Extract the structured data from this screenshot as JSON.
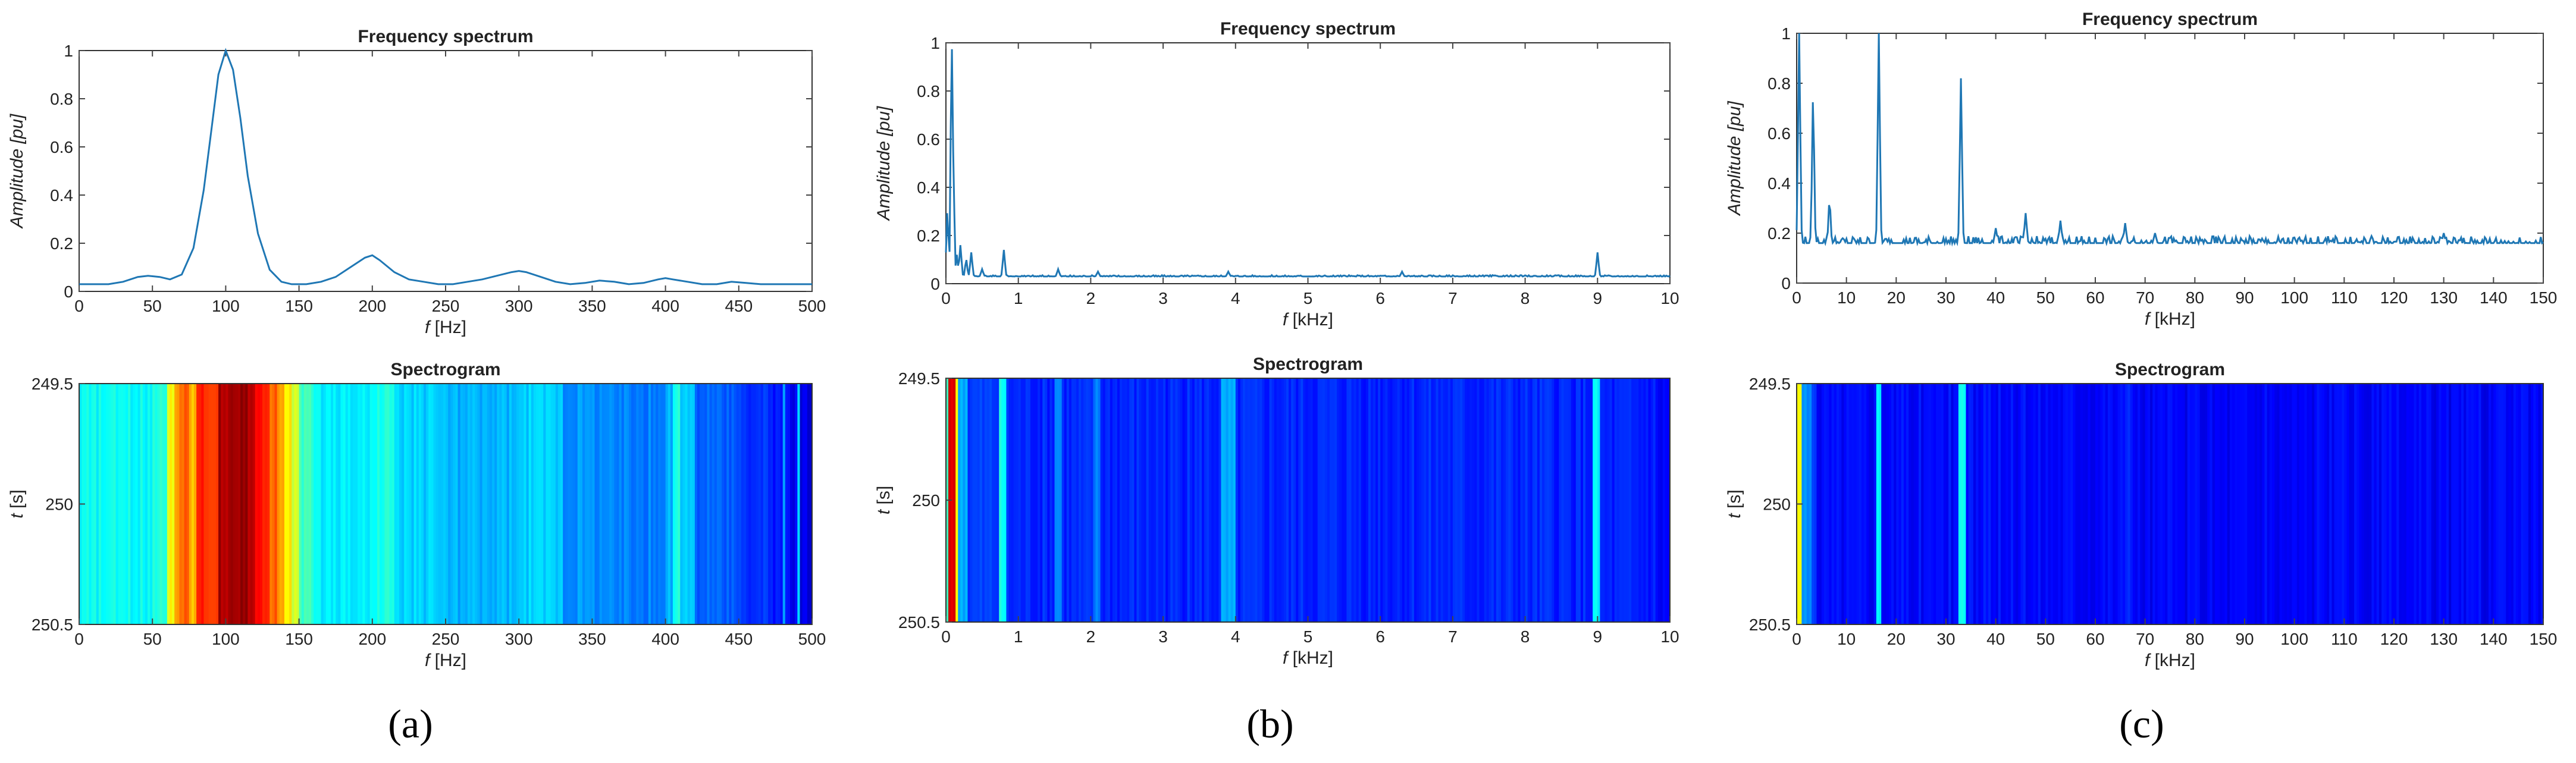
{
  "figure_labels": [
    "(a)",
    "(b)",
    "(c)"
  ],
  "chart_data": [
    {
      "type": "line",
      "title": "Frequency spectrum",
      "xlabel_var": "f",
      "xlabel_unit": "[Hz]",
      "ylabel_var": "Amplitude",
      "ylabel_unit": "[pu]",
      "xlim": [
        0,
        500
      ],
      "ylim": [
        0,
        1
      ],
      "xticks": [
        0,
        50,
        100,
        150,
        200,
        250,
        300,
        350,
        400,
        450,
        500
      ],
      "yticks": [
        0,
        0.2,
        0.4,
        0.6,
        0.8,
        1
      ],
      "ytick_labels": [
        "0",
        "0.2",
        "0.4",
        "0.6",
        "0.8",
        "1"
      ],
      "color": "#1f77b4",
      "series": [
        {
          "name": "spectrum",
          "x": [
            0,
            10,
            20,
            30,
            40,
            47,
            55,
            62,
            70,
            78,
            85,
            90,
            95,
            100,
            105,
            110,
            115,
            122,
            130,
            138,
            145,
            155,
            165,
            175,
            185,
            195,
            200,
            205,
            215,
            225,
            235,
            245,
            255,
            265,
            275,
            285,
            295,
            300,
            305,
            315,
            325,
            335,
            345,
            355,
            365,
            375,
            385,
            395,
            400,
            405,
            415,
            425,
            435,
            445,
            455,
            465,
            475,
            485,
            495,
            500
          ],
          "y": [
            0.03,
            0.03,
            0.03,
            0.04,
            0.06,
            0.065,
            0.06,
            0.05,
            0.07,
            0.18,
            0.42,
            0.66,
            0.9,
            1.0,
            0.92,
            0.72,
            0.48,
            0.24,
            0.09,
            0.04,
            0.03,
            0.03,
            0.04,
            0.06,
            0.1,
            0.14,
            0.15,
            0.13,
            0.08,
            0.05,
            0.04,
            0.03,
            0.03,
            0.04,
            0.05,
            0.065,
            0.08,
            0.085,
            0.08,
            0.06,
            0.04,
            0.03,
            0.035,
            0.045,
            0.04,
            0.03,
            0.035,
            0.05,
            0.055,
            0.05,
            0.04,
            0.03,
            0.03,
            0.04,
            0.035,
            0.03,
            0.03,
            0.03,
            0.03,
            0.03
          ]
        }
      ]
    },
    {
      "type": "line",
      "title": "Frequency spectrum",
      "xlabel_var": "f",
      "xlabel_unit": "[kHz]",
      "ylabel_var": "Amplitude",
      "ylabel_unit": "[pu]",
      "xlim": [
        0,
        10
      ],
      "ylim": [
        0,
        1
      ],
      "xticks": [
        0,
        1,
        2,
        3,
        4,
        5,
        6,
        7,
        8,
        9,
        10
      ],
      "yticks": [
        0,
        0.2,
        0.4,
        0.6,
        0.8,
        1
      ],
      "ytick_labels": [
        "0",
        "0.2",
        "0.4",
        "0.6",
        "0.8",
        "1"
      ],
      "color": "#1f77b4",
      "baseline": 0.03,
      "peaks": [
        [
          0.02,
          0.3
        ],
        [
          0.08,
          1.0
        ],
        [
          0.1,
          0.55
        ],
        [
          0.15,
          0.12
        ],
        [
          0.2,
          0.16
        ],
        [
          0.28,
          0.1
        ],
        [
          0.35,
          0.13
        ],
        [
          0.5,
          0.06
        ],
        [
          0.8,
          0.14
        ],
        [
          1.55,
          0.06
        ],
        [
          2.1,
          0.05
        ],
        [
          3.9,
          0.05
        ],
        [
          6.3,
          0.05
        ],
        [
          9.0,
          0.13
        ]
      ]
    },
    {
      "type": "line",
      "title": "Frequency spectrum",
      "xlabel_var": "f",
      "xlabel_unit": "[kHz]",
      "ylabel_var": "Amplitude",
      "ylabel_unit": "[pu]",
      "xlim": [
        0,
        150
      ],
      "ylim": [
        0,
        1
      ],
      "xticks": [
        0,
        10,
        20,
        30,
        40,
        50,
        60,
        70,
        80,
        90,
        100,
        110,
        120,
        130,
        140,
        150
      ],
      "yticks": [
        0,
        0.2,
        0.4,
        0.6,
        0.8,
        1
      ],
      "ytick_labels": [
        "0",
        "0.2",
        "0.4",
        "0.6",
        "0.8",
        "1"
      ],
      "color": "#1f77b4",
      "baseline": 0.16,
      "peaks": [
        [
          0.5,
          1.0
        ],
        [
          3.3,
          0.74
        ],
        [
          6.6,
          0.33
        ],
        [
          16.5,
          1.0
        ],
        [
          33,
          0.82
        ],
        [
          40,
          0.22
        ],
        [
          46,
          0.28
        ],
        [
          53,
          0.25
        ],
        [
          66,
          0.24
        ],
        [
          72,
          0.2
        ],
        [
          130,
          0.2
        ]
      ]
    },
    {
      "type": "heatmap",
      "title": "Spectrogram",
      "xlabel_var": "f",
      "xlabel_unit": "[Hz]",
      "ylabel_var": "t",
      "ylabel_unit": "[s]",
      "xlim": [
        0,
        500
      ],
      "xticks": [
        0,
        50,
        100,
        150,
        200,
        250,
        300,
        350,
        400,
        450,
        500
      ],
      "ytick_labels": [
        "249.5",
        "250",
        "250.5"
      ],
      "colormap": "jet",
      "bands": [
        [
          0,
          0.38
        ],
        [
          50,
          0.42
        ],
        [
          60,
          0.62
        ],
        [
          65,
          0.74
        ],
        [
          70,
          0.78
        ],
        [
          75,
          0.7
        ],
        [
          80,
          0.86
        ],
        [
          85,
          0.8
        ],
        [
          90,
          0.82
        ],
        [
          95,
          0.96
        ],
        [
          105,
          0.98
        ],
        [
          115,
          0.96
        ],
        [
          120,
          0.86
        ],
        [
          125,
          0.82
        ],
        [
          130,
          0.78
        ],
        [
          135,
          0.72
        ],
        [
          140,
          0.64
        ],
        [
          145,
          0.58
        ],
        [
          150,
          0.44
        ],
        [
          160,
          0.36
        ],
        [
          200,
          0.4
        ],
        [
          215,
          0.33
        ],
        [
          250,
          0.3
        ],
        [
          300,
          0.33
        ],
        [
          330,
          0.27
        ],
        [
          360,
          0.25
        ],
        [
          400,
          0.3
        ],
        [
          405,
          0.4
        ],
        [
          410,
          0.32
        ],
        [
          420,
          0.22
        ],
        [
          450,
          0.17
        ],
        [
          470,
          0.14
        ],
        [
          480,
          0.3
        ],
        [
          482,
          0.12
        ],
        [
          490,
          0.35
        ],
        [
          492,
          0.1
        ]
      ]
    },
    {
      "type": "heatmap",
      "title": "Spectrogram",
      "xlabel_var": "f",
      "xlabel_unit": "[kHz]",
      "ylabel_var": "t",
      "ylabel_unit": "[s]",
      "xlim": [
        0,
        10
      ],
      "xticks": [
        0,
        1,
        2,
        3,
        4,
        5,
        6,
        7,
        8,
        9,
        10
      ],
      "ytick_labels": [
        "249.5",
        "250",
        "250.5"
      ],
      "colormap": "jet",
      "bands": [
        [
          0,
          0.45
        ],
        [
          0.05,
          0.92
        ],
        [
          0.12,
          0.6
        ],
        [
          0.18,
          0.3
        ],
        [
          0.3,
          0.18
        ],
        [
          0.75,
          0.38
        ],
        [
          0.85,
          0.16
        ],
        [
          1.5,
          0.26
        ],
        [
          1.6,
          0.16
        ],
        [
          2.05,
          0.24
        ],
        [
          2.15,
          0.16
        ],
        [
          3.8,
          0.28
        ],
        [
          4.0,
          0.16
        ],
        [
          8.95,
          0.36
        ],
        [
          9.05,
          0.15
        ],
        [
          9.8,
          0.12
        ]
      ]
    },
    {
      "type": "heatmap",
      "title": "Spectrogram",
      "xlabel_var": "f",
      "xlabel_unit": "[kHz]",
      "ylabel_var": "t",
      "ylabel_unit": "[s]",
      "xlim": [
        0,
        150
      ],
      "xticks": [
        0,
        10,
        20,
        30,
        40,
        50,
        60,
        70,
        80,
        90,
        100,
        110,
        120,
        130,
        140,
        150
      ],
      "ytick_labels": [
        "249.5",
        "250",
        "250.5"
      ],
      "colormap": "jet",
      "bands": [
        [
          0,
          0.62
        ],
        [
          0.8,
          0.25
        ],
        [
          3,
          0.2
        ],
        [
          4,
          0.13
        ],
        [
          16,
          0.38
        ],
        [
          17,
          0.13
        ],
        [
          32.5,
          0.4
        ],
        [
          33.8,
          0.13
        ],
        [
          66,
          0.18
        ],
        [
          67,
          0.12
        ]
      ]
    }
  ]
}
